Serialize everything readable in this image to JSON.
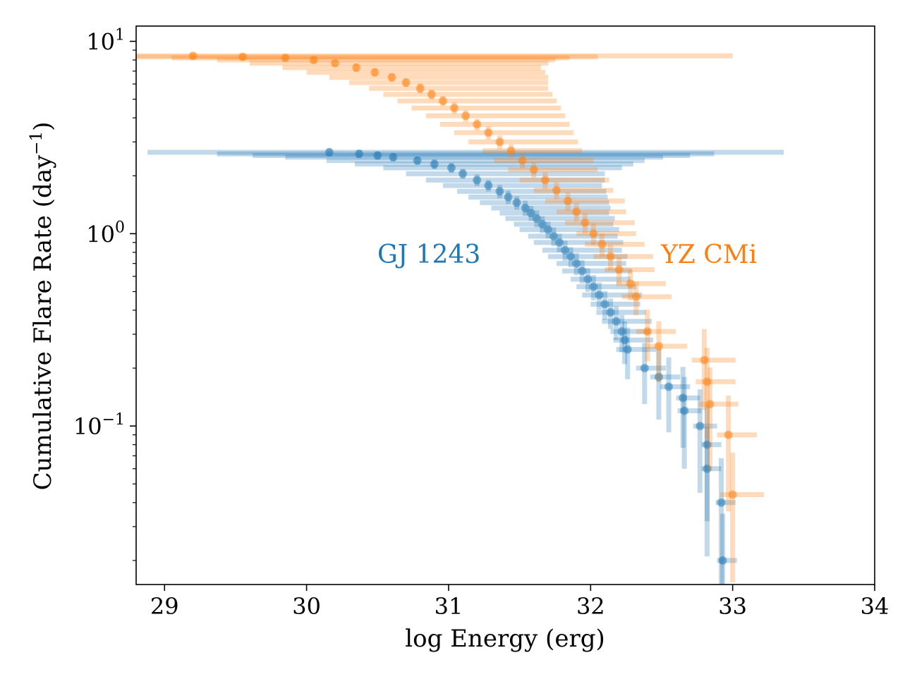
{
  "chart_data": {
    "type": "scatter",
    "title": "",
    "xlabel": "log Energy (erg)",
    "ylabel_main": "Cumulative Flare Rate (day",
    "ylabel_sup": "−1",
    "ylabel_close": ")",
    "xlim": [
      28.8,
      34.0
    ],
    "ylim": [
      0.015,
      12
    ],
    "yscale": "log",
    "grid": false,
    "legend": "none",
    "x_ticks": [
      "29",
      "30",
      "31",
      "32",
      "33",
      "34"
    ],
    "y_ticks": [
      {
        "base": "10",
        "exp": "1"
      },
      {
        "base": "10",
        "exp": "0"
      },
      {
        "base": "10",
        "exp": "−1"
      }
    ],
    "series": [
      {
        "name": "GJ 1243",
        "color": "#1f77b4",
        "x": [
          30.16,
          30.37,
          30.5,
          30.61,
          30.78,
          30.9,
          31.02,
          31.1,
          31.2,
          31.28,
          31.36,
          31.42,
          31.48,
          31.54,
          31.58,
          31.62,
          31.66,
          31.7,
          31.74,
          31.78,
          31.82,
          31.86,
          31.9,
          31.94,
          31.98,
          32.02,
          32.06,
          32.1,
          32.14,
          32.18,
          32.22,
          32.24,
          32.26,
          32.38,
          32.48,
          32.55,
          32.65,
          32.66,
          32.77,
          32.82,
          32.82,
          32.92,
          32.93
        ],
        "y": [
          2.65,
          2.6,
          2.55,
          2.5,
          2.4,
          2.3,
          2.2,
          2.05,
          1.9,
          1.78,
          1.66,
          1.55,
          1.45,
          1.36,
          1.28,
          1.2,
          1.12,
          1.05,
          0.97,
          0.9,
          0.82,
          0.76,
          0.7,
          0.64,
          0.58,
          0.53,
          0.48,
          0.43,
          0.39,
          0.35,
          0.31,
          0.28,
          0.25,
          0.2,
          0.18,
          0.16,
          0.14,
          0.12,
          0.1,
          0.08,
          0.06,
          0.04,
          0.02
        ],
        "xerr": [
          3.2,
          2.5,
          2.2,
          1.9,
          1.6,
          1.4,
          1.2,
          1.0,
          0.9,
          0.8,
          0.75,
          0.7,
          0.65,
          0.6,
          0.55,
          0.55,
          0.5,
          0.5,
          0.45,
          0.45,
          0.4,
          0.4,
          0.35,
          0.35,
          0.3,
          0.3,
          0.3,
          0.25,
          0.25,
          0.25,
          0.2,
          0.2,
          0.2,
          0.15,
          0.15,
          0.15,
          0.12,
          0.12,
          0.12,
          0.1,
          0.1,
          0.1,
          0.1
        ],
        "yerr_frac": [
          0.05,
          0.05,
          0.05,
          0.05,
          0.05,
          0.06,
          0.06,
          0.06,
          0.07,
          0.07,
          0.08,
          0.08,
          0.08,
          0.09,
          0.09,
          0.1,
          0.1,
          0.1,
          0.11,
          0.11,
          0.12,
          0.12,
          0.13,
          0.14,
          0.14,
          0.15,
          0.16,
          0.17,
          0.18,
          0.2,
          0.22,
          0.25,
          0.3,
          0.35,
          0.4,
          0.42,
          0.45,
          0.5,
          0.55,
          0.6,
          0.65,
          0.7,
          0.75
        ]
      },
      {
        "name": "YZ CMi",
        "color": "#ff7f0e",
        "x": [
          29.2,
          29.55,
          29.85,
          30.05,
          30.2,
          30.35,
          30.48,
          30.6,
          30.7,
          30.8,
          30.88,
          30.96,
          31.04,
          31.12,
          31.2,
          31.28,
          31.36,
          31.44,
          31.52,
          31.6,
          31.68,
          31.76,
          31.84,
          31.9,
          31.96,
          32.02,
          32.08,
          32.14,
          32.2,
          32.28,
          32.32,
          32.4,
          32.48,
          32.8,
          32.82,
          32.84,
          32.97,
          33.0
        ],
        "y": [
          8.4,
          8.3,
          8.2,
          8.0,
          7.7,
          7.3,
          6.9,
          6.5,
          6.1,
          5.7,
          5.3,
          4.9,
          4.5,
          4.1,
          3.7,
          3.35,
          3.0,
          2.7,
          2.4,
          2.15,
          1.9,
          1.68,
          1.48,
          1.3,
          1.14,
          1.0,
          0.88,
          0.76,
          0.65,
          0.55,
          0.47,
          0.31,
          0.26,
          0.22,
          0.17,
          0.13,
          0.09,
          0.044
        ],
        "xerr": [
          3.8,
          2.5,
          2.0,
          1.7,
          1.5,
          1.3,
          1.2,
          1.1,
          1.0,
          0.9,
          0.85,
          0.8,
          0.75,
          0.7,
          0.65,
          0.6,
          0.55,
          0.5,
          0.5,
          0.45,
          0.45,
          0.4,
          0.4,
          0.35,
          0.35,
          0.3,
          0.3,
          0.3,
          0.25,
          0.25,
          0.25,
          0.2,
          0.2,
          0.22,
          0.2,
          0.2,
          0.2,
          0.22
        ],
        "yerr_frac": [
          0.04,
          0.04,
          0.04,
          0.04,
          0.04,
          0.05,
          0.05,
          0.05,
          0.05,
          0.06,
          0.06,
          0.06,
          0.07,
          0.07,
          0.07,
          0.08,
          0.08,
          0.08,
          0.09,
          0.09,
          0.1,
          0.1,
          0.11,
          0.11,
          0.12,
          0.13,
          0.14,
          0.15,
          0.16,
          0.18,
          0.2,
          0.3,
          0.35,
          0.45,
          0.5,
          0.55,
          0.6,
          0.65
        ]
      }
    ]
  }
}
